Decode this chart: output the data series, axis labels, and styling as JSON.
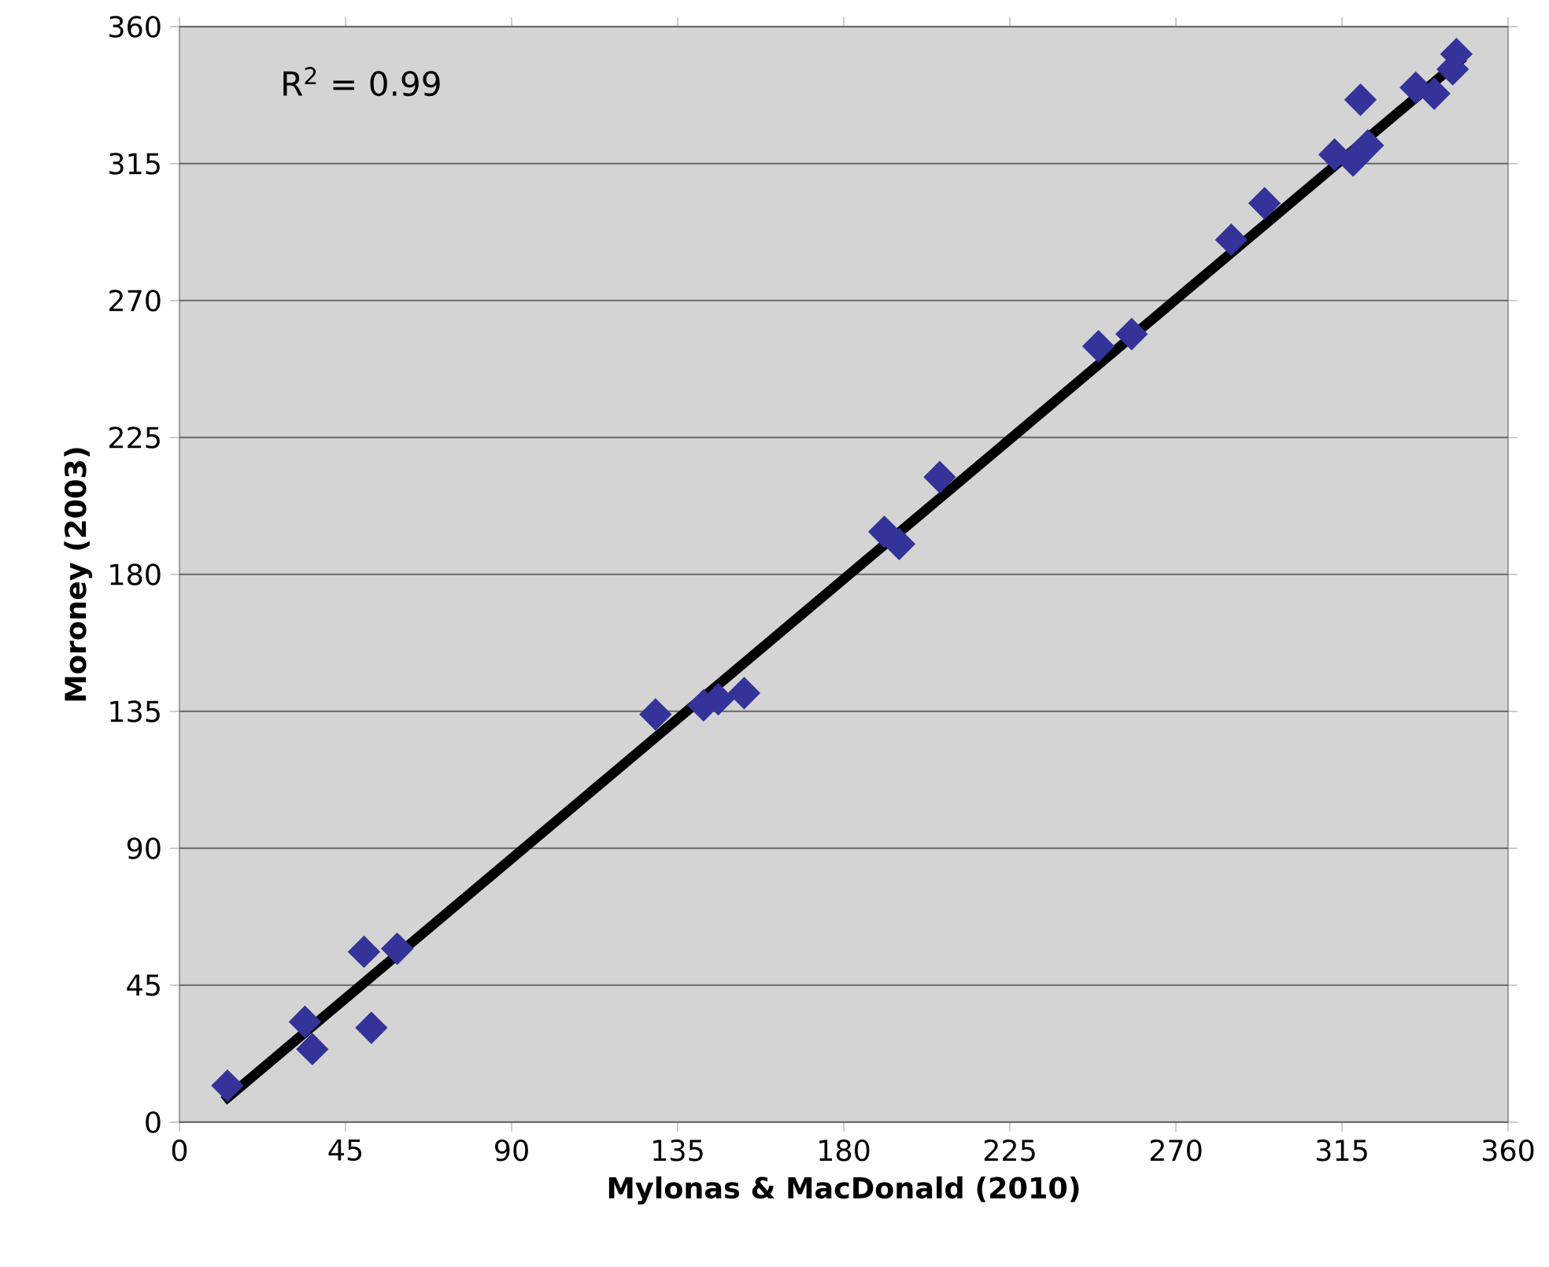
{
  "chart_data": {
    "type": "scatter",
    "xlabel": "Mylonas & MacDonald (2010)",
    "ylabel": "Moroney (2003)",
    "annotations": [
      "R$^{2}$ = 0.99"
    ],
    "xlim": [
      0,
      360
    ],
    "ylim": [
      0,
      360
    ],
    "xticks": [
      0,
      45,
      90,
      135,
      180,
      225,
      270,
      315,
      360
    ],
    "yticks": [
      0,
      45,
      90,
      135,
      180,
      225,
      270,
      315,
      360
    ],
    "grid": "y",
    "marker": "diamond",
    "series": [
      {
        "color": "#333399",
        "x": [
          13,
          34,
          36,
          52,
          50,
          59,
          129,
          142,
          146,
          153,
          191,
          195,
          206,
          249,
          258,
          285,
          294,
          313,
          318,
          320,
          322,
          335,
          340,
          345,
          346
        ],
        "values": [
          12,
          33,
          24,
          31,
          56,
          57,
          134,
          137,
          139,
          141,
          194,
          190,
          212,
          255,
          259,
          290,
          302,
          318,
          316,
          336,
          321,
          340,
          338,
          346,
          351
        ]
      },
      {
        "type": "line",
        "color": "#000000",
        "marker": "none",
        "x": [
          12,
          348
        ],
        "values": [
          7,
          350
        ]
      }
    ]
  }
}
